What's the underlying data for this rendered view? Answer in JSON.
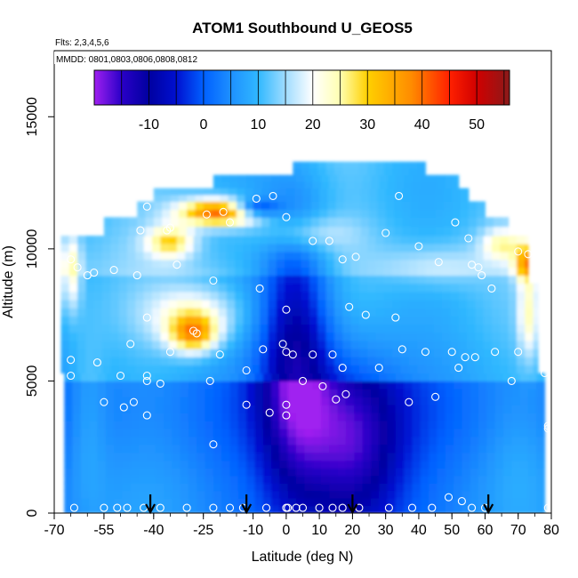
{
  "chart_data": {
    "type": "heatmap",
    "title": "ATOM1 Southbound U_GEOS5",
    "flights_note": "Flts: 2,3,4,5,6",
    "dates_note": "MMDD: 0801,0803,0806,0808,0812",
    "xlabel": "Latitude (deg N)",
    "ylabel": "Altitude (m)",
    "xlim": [
      -70,
      80
    ],
    "ylim": [
      0,
      17500
    ],
    "x_tick_labels": [
      "-70",
      "-55",
      "-40",
      "-25",
      "-10",
      "0",
      "10",
      "20",
      "30",
      "40",
      "50",
      "60",
      "70",
      "80"
    ],
    "y_tick_labels": [
      "0",
      "5000",
      "10000",
      "15000"
    ],
    "colorbar": {
      "range": [
        -20,
        56
      ],
      "tick_labels": [
        "-10",
        "0",
        "10",
        "20",
        "30",
        "40",
        "50"
      ],
      "stops": [
        {
          "v": -20,
          "c": "#a020f0"
        },
        {
          "v": -15,
          "c": "#2a00c8"
        },
        {
          "v": -10,
          "c": "#0000a0"
        },
        {
          "v": -5,
          "c": "#0010d0"
        },
        {
          "v": 0,
          "c": "#0060ff"
        },
        {
          "v": 5,
          "c": "#1e90ff"
        },
        {
          "v": 10,
          "c": "#30b8ff"
        },
        {
          "v": 15,
          "c": "#9fdcff"
        },
        {
          "v": 20,
          "c": "#ffffff"
        },
        {
          "v": 25,
          "c": "#ffffb0"
        },
        {
          "v": 30,
          "c": "#ffd000"
        },
        {
          "v": 38,
          "c": "#ff8c00"
        },
        {
          "v": 45,
          "c": "#ff2000"
        },
        {
          "v": 50,
          "c": "#d00000"
        },
        {
          "v": 56,
          "c": "#8b1a1a"
        }
      ]
    },
    "field_bands": [
      {
        "z0": 0,
        "z1": 2000,
        "lat0": -67,
        "lat1": 78
      },
      {
        "z0": 2000,
        "z1": 5300,
        "lat0": -67,
        "lat1": 78
      },
      {
        "z0": 5300,
        "z1": 8700,
        "lat0": -68,
        "lat1": 76
      },
      {
        "z0": 8700,
        "z1": 10500,
        "lat0": -68,
        "lat1": 73
      },
      {
        "z0": 10500,
        "z1": 11200,
        "lat0": -55,
        "lat1": 67
      },
      {
        "z0": 11200,
        "z1": 11800,
        "lat0": -45,
        "lat1": 60
      },
      {
        "z0": 11800,
        "z1": 12300,
        "lat0": -40,
        "lat1": 55
      },
      {
        "z0": 12300,
        "z1": 12800,
        "lat0": -22,
        "lat1": 52
      },
      {
        "z0": 12800,
        "z1": 13300,
        "lat0": 2,
        "lat1": 42
      }
    ],
    "field_anomalies": [
      {
        "lat": 3,
        "z": 6000,
        "rlat": 11,
        "rz": 5500,
        "v": -12
      },
      {
        "lat": 20,
        "z": 2500,
        "rlat": 14,
        "rz": 3500,
        "v": -8
      },
      {
        "lat": -20,
        "z": 11400,
        "rlat": 12,
        "rz": 500,
        "v": 40
      },
      {
        "lat": -10,
        "z": 11550,
        "rlat": 7,
        "rz": 350,
        "v": -10
      },
      {
        "lat": -35,
        "z": 10300,
        "rlat": 7,
        "rz": 600,
        "v": 25
      },
      {
        "lat": -28,
        "z": 6800,
        "rlat": 7,
        "rz": 700,
        "v": 30
      },
      {
        "lat": -28,
        "z": 7500,
        "rlat": 14,
        "rz": 1100,
        "v": 20
      },
      {
        "lat": -65,
        "z": 9200,
        "rlat": 3,
        "rz": 1500,
        "v": 22
      },
      {
        "lat": 73,
        "z": 9500,
        "rlat": 4,
        "rz": 700,
        "v": 30
      },
      {
        "lat": 73,
        "z": 7500,
        "rlat": 3,
        "rz": 1600,
        "v": 20
      },
      {
        "lat": 65,
        "z": 10200,
        "rlat": 6,
        "rz": 600,
        "v": 20
      },
      {
        "lat": 5,
        "z": 10600,
        "rlat": 14,
        "rz": 700,
        "v": 17
      },
      {
        "lat": 45,
        "z": 9300,
        "rlat": 16,
        "rz": 800,
        "v": 14
      },
      {
        "lat": -60,
        "z": 3500,
        "rlat": 6,
        "rz": 3500,
        "v": 13
      },
      {
        "lat": 70,
        "z": 2200,
        "rlat": 8,
        "rz": 2200,
        "v": 10
      }
    ],
    "obs_points": [
      [
        -64,
        200
      ],
      [
        -55,
        200
      ],
      [
        -51,
        200
      ],
      [
        -48,
        200
      ],
      [
        -43,
        200
      ],
      [
        -38,
        200
      ],
      [
        -30,
        200
      ],
      [
        -22,
        200
      ],
      [
        -17,
        200
      ],
      [
        -13,
        200
      ],
      [
        -6,
        200
      ],
      [
        0,
        200
      ],
      [
        0.5,
        200
      ],
      [
        3,
        200
      ],
      [
        5,
        200
      ],
      [
        10,
        200
      ],
      [
        14,
        200
      ],
      [
        17,
        200
      ],
      [
        22,
        200
      ],
      [
        31,
        200
      ],
      [
        38,
        200
      ],
      [
        44,
        200
      ],
      [
        56,
        200
      ],
      [
        60,
        200
      ],
      [
        79,
        200
      ],
      [
        49,
        600
      ],
      [
        53,
        450
      ],
      [
        -22,
        2600
      ],
      [
        79,
        3300
      ],
      [
        79,
        3200
      ],
      [
        -55,
        4200
      ],
      [
        -49,
        4000
      ],
      [
        -46,
        4200
      ],
      [
        -42,
        3700
      ],
      [
        -12,
        4100
      ],
      [
        -5,
        3800
      ],
      [
        0,
        4100
      ],
      [
        0,
        3700
      ],
      [
        15,
        4300
      ],
      [
        18,
        4500
      ],
      [
        37,
        4200
      ],
      [
        45,
        4400
      ],
      [
        -65,
        5200
      ],
      [
        -50,
        5200
      ],
      [
        -42,
        5000
      ],
      [
        -42,
        5200
      ],
      [
        -38,
        4900
      ],
      [
        -23,
        5000
      ],
      [
        -12,
        5400
      ],
      [
        5,
        5000
      ],
      [
        11,
        4800
      ],
      [
        17,
        5500
      ],
      [
        28,
        5500
      ],
      [
        52,
        5500
      ],
      [
        68,
        5000
      ],
      [
        78,
        5300
      ],
      [
        -65,
        5800
      ],
      [
        -57,
        5700
      ],
      [
        -47,
        6400
      ],
      [
        -35,
        6100
      ],
      [
        -20,
        6000
      ],
      [
        -7,
        6200
      ],
      [
        -1,
        6400
      ],
      [
        0,
        6100
      ],
      [
        2,
        6000
      ],
      [
        8,
        6000
      ],
      [
        14,
        6000
      ],
      [
        35,
        6200
      ],
      [
        42,
        6100
      ],
      [
        50,
        6100
      ],
      [
        54,
        5900
      ],
      [
        57,
        5900
      ],
      [
        63,
        6100
      ],
      [
        70,
        6100
      ],
      [
        -42,
        7400
      ],
      [
        -28,
        6900
      ],
      [
        -27,
        6800
      ],
      [
        19,
        7800
      ],
      [
        24,
        7500
      ],
      [
        33,
        7400
      ],
      [
        0,
        7700
      ],
      [
        -65,
        9600
      ],
      [
        -63,
        9300
      ],
      [
        -60,
        9000
      ],
      [
        -58,
        9100
      ],
      [
        -52,
        9200
      ],
      [
        -45,
        9000
      ],
      [
        -33,
        9400
      ],
      [
        -22,
        8800
      ],
      [
        -8,
        8500
      ],
      [
        17,
        9600
      ],
      [
        21,
        9700
      ],
      [
        46,
        9500
      ],
      [
        56,
        9400
      ],
      [
        58,
        9300
      ],
      [
        59,
        9000
      ],
      [
        62,
        8500
      ],
      [
        -44,
        10700
      ],
      [
        -36,
        10700
      ],
      [
        -35,
        10800
      ],
      [
        -24,
        11300
      ],
      [
        -19,
        11400
      ],
      [
        -17,
        11000
      ],
      [
        -9,
        11900
      ],
      [
        0,
        11200
      ],
      [
        8,
        10300
      ],
      [
        13,
        10300
      ],
      [
        30,
        10600
      ],
      [
        40,
        10100
      ],
      [
        51,
        11000
      ],
      [
        55,
        10400
      ],
      [
        70,
        9900
      ],
      [
        73,
        9800
      ],
      [
        -42,
        11600
      ],
      [
        -4,
        12000
      ],
      [
        34,
        12000
      ]
    ],
    "arrows_lat": [
      -41,
      -12,
      20,
      61
    ]
  }
}
